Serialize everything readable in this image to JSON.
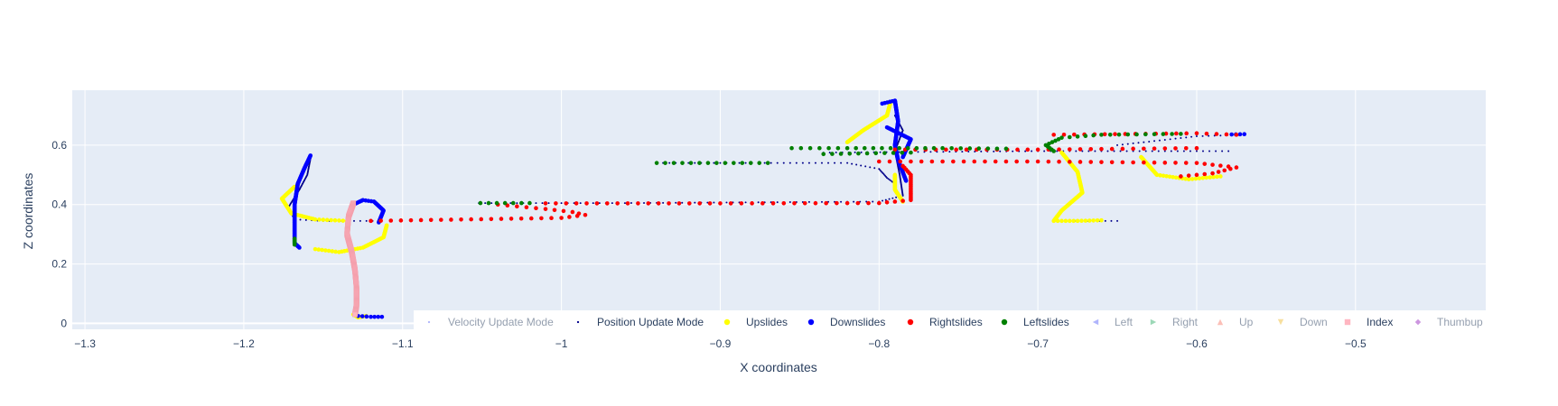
{
  "chart_data": {
    "type": "scatter",
    "xlabel": "X coordinates",
    "ylabel": "Z coordinates",
    "xlim": [
      -1.308,
      -0.418
    ],
    "ylim": [
      -0.02,
      0.785
    ],
    "x_ticks": [
      -1.3,
      -1.2,
      -1.1,
      -1,
      -0.9,
      -0.8,
      -0.7,
      -0.6,
      -0.5
    ],
    "x_tick_labels": [
      "−1.3",
      "−1.2",
      "−1.1",
      "−1",
      "−0.9",
      "−0.8",
      "−0.7",
      "−0.6",
      "−0.5"
    ],
    "y_ticks": [
      0,
      0.2,
      0.4,
      0.6
    ],
    "y_tick_labels": [
      "0",
      "0.2",
      "0.4",
      "0.6"
    ],
    "grid": true,
    "legend_position": "bottom-right",
    "colors": {
      "plot_background": "#e5ecf6",
      "grid": "#ffffff",
      "text": "#2a3f5f",
      "velocity": "#636efa",
      "position": "#00008b",
      "upslides": "#ffff00",
      "downslides": "#0000ff",
      "rightslides": "#ff0000",
      "leftslides": "#008000",
      "left": "#636efa",
      "right": "#3cb371",
      "up": "#fa8072",
      "down": "#f0c040",
      "index": "#ffb6c1",
      "thumbup": "#9b30c0"
    },
    "legend": [
      {
        "name": "Velocity Update Mode",
        "marker": "dot",
        "color": "#636efa",
        "visible": false
      },
      {
        "name": "Position Update Mode",
        "marker": "dot",
        "color": "#00008b",
        "visible": true
      },
      {
        "name": "Upslides",
        "marker": "circle",
        "color": "#ffff00",
        "visible": true
      },
      {
        "name": "Downslides",
        "marker": "circle",
        "color": "#0000ff",
        "visible": true
      },
      {
        "name": "Rightslides",
        "marker": "circle",
        "color": "#ff0000",
        "visible": true
      },
      {
        "name": "Leftslides",
        "marker": "circle",
        "color": "#008000",
        "visible": true
      },
      {
        "name": "Left",
        "marker": "triangle-left",
        "color": "#636efa",
        "visible": false
      },
      {
        "name": "Right",
        "marker": "triangle-right",
        "color": "#3cb371",
        "visible": false
      },
      {
        "name": "Up",
        "marker": "triangle-up",
        "color": "#fa8072",
        "visible": false
      },
      {
        "name": "Down",
        "marker": "triangle-down",
        "color": "#f0c040",
        "visible": false
      },
      {
        "name": "Index",
        "marker": "square",
        "color": "#ffb6c1",
        "visible": true
      },
      {
        "name": "Thumbup",
        "marker": "diamond",
        "color": "#9b30c0",
        "visible": false
      }
    ],
    "series": [
      {
        "name": "Position Update Mode",
        "color": "#00008b",
        "marker": "dot",
        "spacing": 0.004,
        "path": [
          [
            -1.115,
            0.345
          ],
          [
            -1.15,
            0.345
          ],
          [
            -1.168,
            0.35
          ],
          [
            -1.172,
            0.39
          ],
          [
            -1.165,
            0.45
          ],
          [
            -1.16,
            0.5
          ],
          [
            -1.158,
            0.555
          ]
        ]
      },
      {
        "name": "Position Update Mode",
        "color": "#00008b",
        "marker": "dot",
        "spacing": 0.004,
        "path": [
          [
            -1.052,
            0.405
          ],
          [
            -0.96,
            0.405
          ],
          [
            -0.8,
            0.41
          ],
          [
            -0.785,
            0.43
          ],
          [
            -0.787,
            0.5
          ],
          [
            -0.79,
            0.58
          ],
          [
            -0.785,
            0.65
          ],
          [
            -0.79,
            0.7
          ]
        ]
      },
      {
        "name": "Position Update Mode",
        "color": "#00008b",
        "marker": "dot",
        "spacing": 0.004,
        "path": [
          [
            -0.94,
            0.54
          ],
          [
            -0.82,
            0.54
          ],
          [
            -0.8,
            0.52
          ],
          [
            -0.795,
            0.49
          ],
          [
            -0.79,
            0.47
          ]
        ]
      },
      {
        "name": "Position Update Mode",
        "color": "#00008b",
        "marker": "dot",
        "spacing": 0.004,
        "path": [
          [
            -0.835,
            0.575
          ],
          [
            -0.7,
            0.58
          ],
          [
            -0.58,
            0.58
          ]
        ]
      },
      {
        "name": "Position Update Mode",
        "color": "#00008b",
        "marker": "dot",
        "spacing": 0.004,
        "path": [
          [
            -0.68,
            0.345
          ],
          [
            -0.65,
            0.345
          ]
        ]
      },
      {
        "name": "Position Update Mode",
        "color": "#00008b",
        "marker": "dot",
        "spacing": 0.004,
        "path": [
          [
            -0.65,
            0.6
          ],
          [
            -0.6,
            0.63
          ],
          [
            -0.57,
            0.635
          ]
        ]
      },
      {
        "name": "Upslides",
        "color": "#ffff00",
        "marker": "circle",
        "spacing": 0.0025,
        "path": [
          [
            -1.168,
            0.46
          ],
          [
            -1.176,
            0.42
          ],
          [
            -1.17,
            0.37
          ],
          [
            -1.155,
            0.35
          ],
          [
            -1.135,
            0.345
          ]
        ]
      },
      {
        "name": "Upslides",
        "color": "#ffff00",
        "marker": "circle",
        "spacing": 0.0025,
        "path": [
          [
            -1.155,
            0.25
          ],
          [
            -1.14,
            0.24
          ],
          [
            -1.125,
            0.255
          ],
          [
            -1.112,
            0.29
          ],
          [
            -1.11,
            0.33
          ]
        ]
      },
      {
        "name": "Upslides",
        "color": "#ffff00",
        "marker": "circle",
        "spacing": 0.0025,
        "path": [
          [
            -1.131,
            0.03
          ],
          [
            -1.128,
            0.02
          ],
          [
            -1.123,
            0.025
          ]
        ]
      },
      {
        "name": "Upslides",
        "color": "#ffff00",
        "marker": "circle",
        "spacing": 0.0025,
        "path": [
          [
            -0.82,
            0.61
          ],
          [
            -0.81,
            0.65
          ],
          [
            -0.795,
            0.7
          ],
          [
            -0.793,
            0.74
          ]
        ]
      },
      {
        "name": "Upslides",
        "color": "#ffff00",
        "marker": "circle",
        "spacing": 0.0025,
        "path": [
          [
            -0.79,
            0.5
          ],
          [
            -0.79,
            0.45
          ],
          [
            -0.785,
            0.41
          ]
        ]
      },
      {
        "name": "Upslides",
        "color": "#ffff00",
        "marker": "circle",
        "spacing": 0.0025,
        "path": [
          [
            -0.685,
            0.575
          ],
          [
            -0.675,
            0.51
          ],
          [
            -0.672,
            0.44
          ],
          [
            -0.685,
            0.38
          ],
          [
            -0.69,
            0.345
          ],
          [
            -0.675,
            0.345
          ],
          [
            -0.66,
            0.347
          ]
        ]
      },
      {
        "name": "Upslides",
        "color": "#ffff00",
        "marker": "circle",
        "spacing": 0.0025,
        "path": [
          [
            -0.635,
            0.56
          ],
          [
            -0.625,
            0.5
          ],
          [
            -0.605,
            0.485
          ],
          [
            -0.585,
            0.495
          ]
        ]
      },
      {
        "name": "Downslides",
        "color": "#0000ff",
        "marker": "circle",
        "spacing": 0.0025,
        "path": [
          [
            -1.158,
            0.565
          ],
          [
            -1.162,
            0.52
          ],
          [
            -1.166,
            0.47
          ],
          [
            -1.168,
            0.4
          ],
          [
            -1.168,
            0.33
          ],
          [
            -1.168,
            0.27
          ],
          [
            -1.165,
            0.255
          ]
        ]
      },
      {
        "name": "Downslides",
        "color": "#0000ff",
        "marker": "circle",
        "spacing": 0.0025,
        "path": [
          [
            -1.131,
            0.4
          ],
          [
            -1.125,
            0.415
          ],
          [
            -1.118,
            0.41
          ],
          [
            -1.112,
            0.38
          ],
          [
            -1.115,
            0.34
          ]
        ]
      },
      {
        "name": "Downslides",
        "color": "#0000ff",
        "marker": "circle",
        "spacing": 0.0025,
        "path": [
          [
            -1.128,
            0.025
          ],
          [
            -1.12,
            0.022
          ],
          [
            -1.113,
            0.022
          ]
        ]
      },
      {
        "name": "Downslides",
        "color": "#0000ff",
        "marker": "circle",
        "spacing": 0.0025,
        "path": [
          [
            -0.798,
            0.74
          ],
          [
            -0.79,
            0.75
          ],
          [
            -0.788,
            0.68
          ],
          [
            -0.79,
            0.6
          ],
          [
            -0.788,
            0.55
          ],
          [
            -0.783,
            0.48
          ]
        ]
      },
      {
        "name": "Downslides",
        "color": "#0000ff",
        "marker": "circle",
        "spacing": 0.0025,
        "path": [
          [
            -0.795,
            0.66
          ],
          [
            -0.78,
            0.62
          ],
          [
            -0.785,
            0.56
          ]
        ]
      },
      {
        "name": "Downslides",
        "color": "#0000ff",
        "marker": "circle",
        "spacing": 0.0025,
        "path": [
          [
            -0.578,
            0.636
          ],
          [
            -0.57,
            0.637
          ]
        ]
      },
      {
        "name": "Rightslides",
        "color": "#ff0000",
        "marker": "circle",
        "spacing": 0.0065,
        "path": [
          [
            -1.12,
            0.345
          ],
          [
            -1.0,
            0.355
          ],
          [
            -0.985,
            0.365
          ],
          [
            -0.993,
            0.375
          ],
          [
            -1.01,
            0.385
          ],
          [
            -1.04,
            0.4
          ]
        ]
      },
      {
        "name": "Rightslides",
        "color": "#ff0000",
        "marker": "circle",
        "spacing": 0.0065,
        "path": [
          [
            -1.01,
            0.404
          ],
          [
            -0.9,
            0.404
          ],
          [
            -0.8,
            0.405
          ],
          [
            -0.78,
            0.415
          ],
          [
            -0.78,
            0.45
          ],
          [
            -0.78,
            0.5
          ],
          [
            -0.785,
            0.53
          ]
        ]
      },
      {
        "name": "Rightslides",
        "color": "#ff0000",
        "marker": "circle",
        "spacing": 0.0065,
        "path": [
          [
            -0.79,
            0.585
          ],
          [
            -0.7,
            0.585
          ],
          [
            -0.6,
            0.59
          ]
        ]
      },
      {
        "name": "Rightslides",
        "color": "#ff0000",
        "marker": "circle",
        "spacing": 0.0065,
        "path": [
          [
            -0.69,
            0.635
          ],
          [
            -0.6,
            0.64
          ],
          [
            -0.575,
            0.635
          ]
        ]
      },
      {
        "name": "Rightslides",
        "color": "#ff0000",
        "marker": "circle",
        "spacing": 0.0065,
        "path": [
          [
            -0.8,
            0.545
          ],
          [
            -0.7,
            0.545
          ],
          [
            -0.6,
            0.54
          ],
          [
            -0.575,
            0.525
          ],
          [
            -0.59,
            0.505
          ],
          [
            -0.61,
            0.495
          ]
        ]
      },
      {
        "name": "Leftslides",
        "color": "#008000",
        "marker": "circle",
        "spacing": 0.0055,
        "path": [
          [
            -1.051,
            0.405
          ],
          [
            -1.02,
            0.405
          ]
        ]
      },
      {
        "name": "Leftslides",
        "color": "#008000",
        "marker": "circle",
        "spacing": 0.0055,
        "path": [
          [
            -1.168,
            0.285
          ],
          [
            -1.168,
            0.265
          ]
        ]
      },
      {
        "name": "Leftslides",
        "color": "#008000",
        "marker": "circle",
        "spacing": 0.0055,
        "path": [
          [
            -0.94,
            0.54
          ],
          [
            -0.87,
            0.54
          ]
        ]
      },
      {
        "name": "Leftslides",
        "color": "#008000",
        "marker": "circle",
        "spacing": 0.0055,
        "path": [
          [
            -0.855,
            0.59
          ],
          [
            -0.82,
            0.59
          ],
          [
            -0.76,
            0.59
          ],
          [
            -0.72,
            0.588
          ]
        ]
      },
      {
        "name": "Leftslides",
        "color": "#008000",
        "marker": "circle",
        "spacing": 0.0055,
        "path": [
          [
            -0.835,
            0.57
          ],
          [
            -0.78,
            0.575
          ]
        ]
      },
      {
        "name": "Leftslides",
        "color": "#008000",
        "marker": "circle",
        "spacing": 0.0055,
        "path": [
          [
            -0.69,
            0.58
          ],
          [
            -0.695,
            0.6
          ],
          [
            -0.685,
            0.625
          ],
          [
            -0.66,
            0.635
          ],
          [
            -0.61,
            0.638
          ]
        ]
      },
      {
        "name": "Index",
        "color": "#ffb6c1",
        "marker": "square",
        "spacing": 0.0016,
        "path": [
          [
            -1.131,
            0.405
          ],
          [
            -1.134,
            0.36
          ],
          [
            -1.135,
            0.3
          ],
          [
            -1.132,
            0.24
          ],
          [
            -1.13,
            0.18
          ],
          [
            -1.129,
            0.12
          ],
          [
            -1.129,
            0.06
          ],
          [
            -1.13,
            0.03
          ]
        ]
      }
    ]
  }
}
